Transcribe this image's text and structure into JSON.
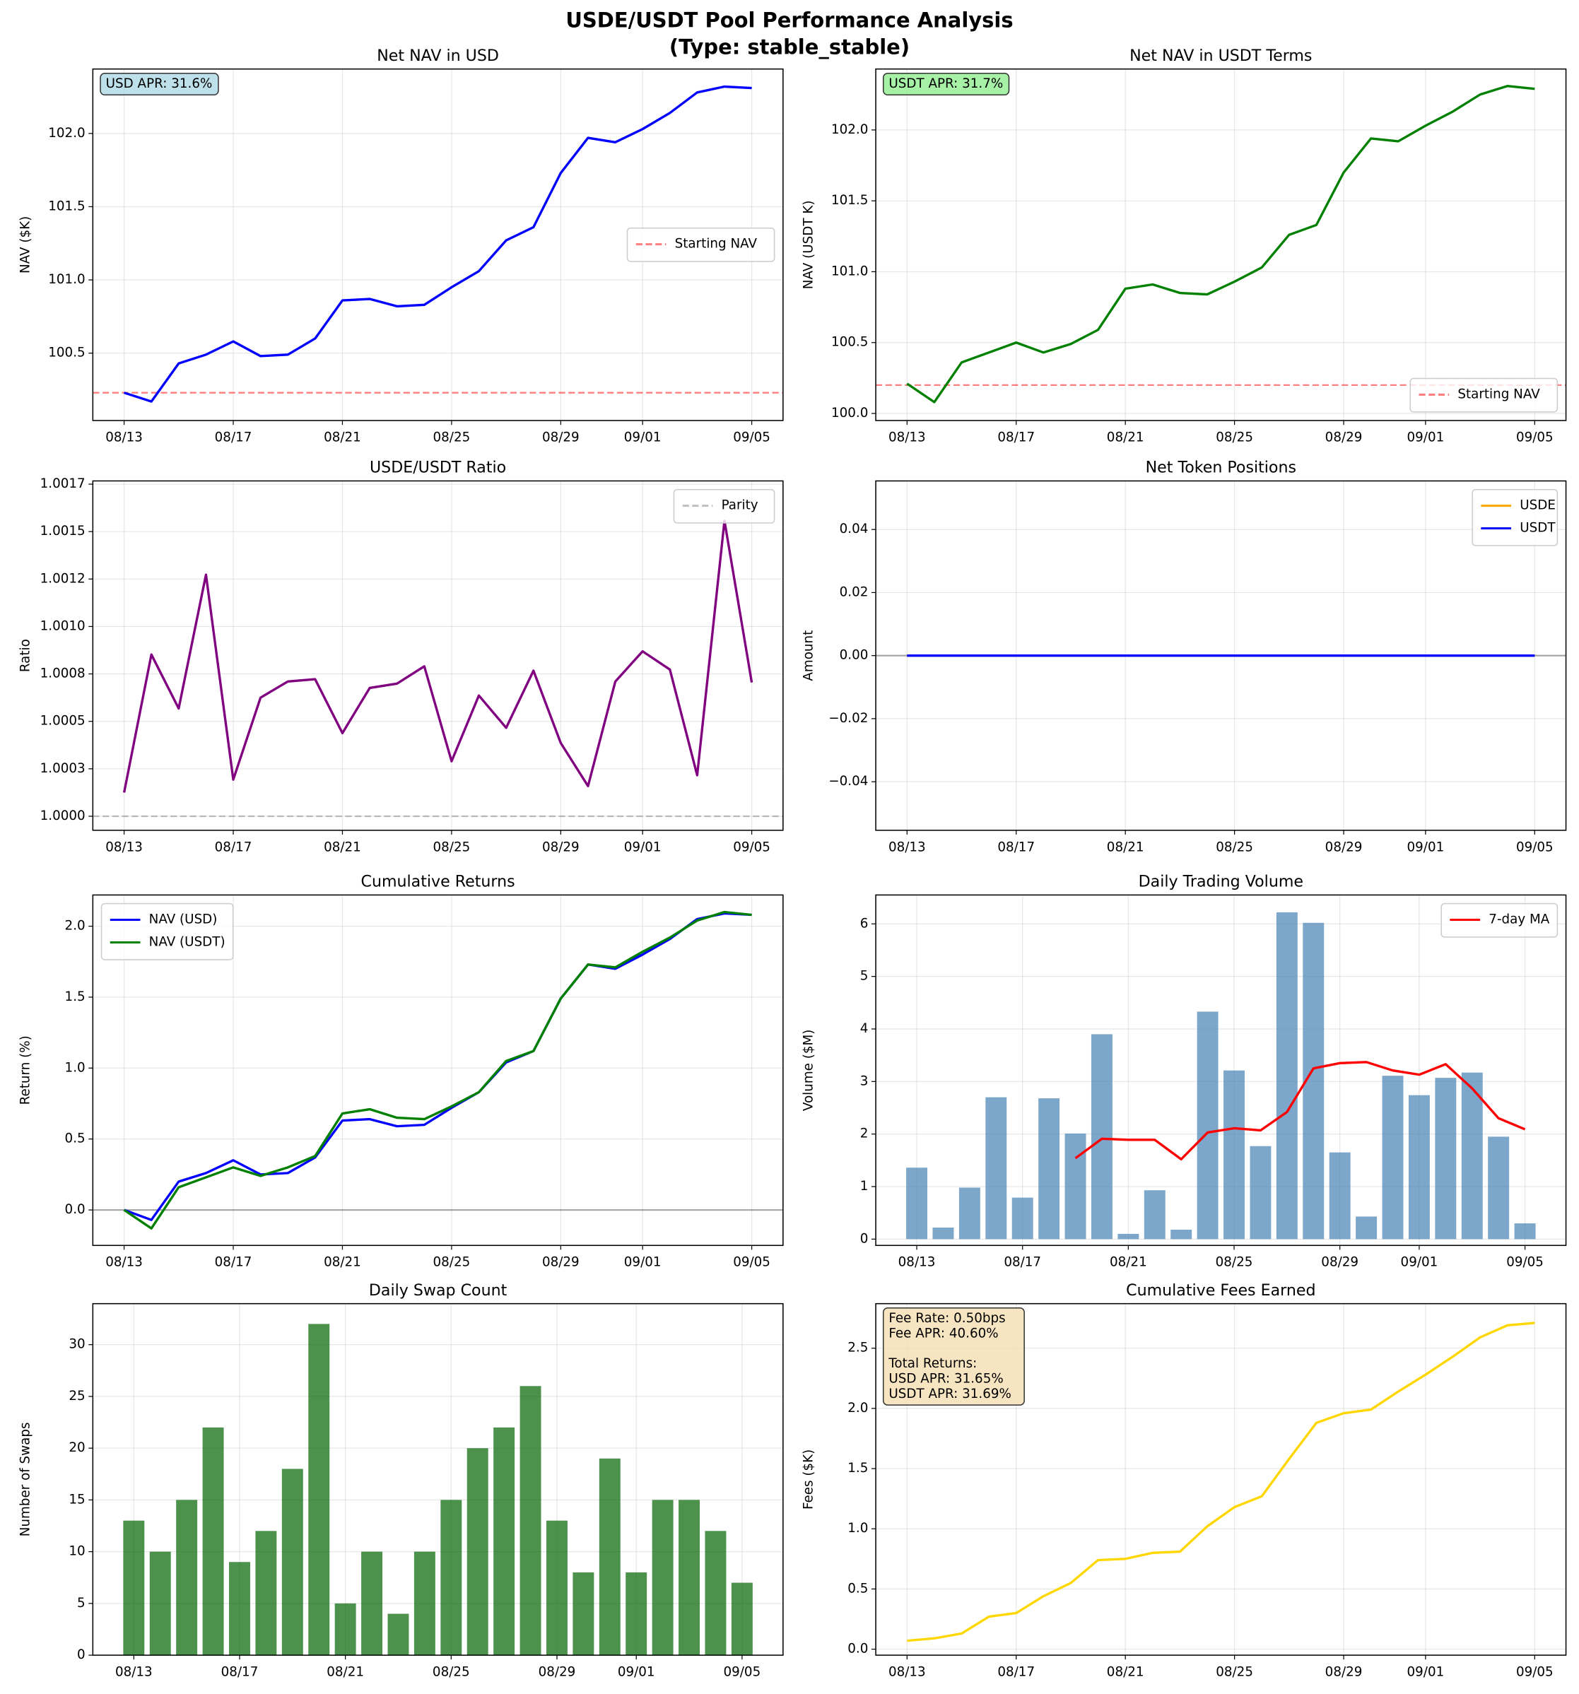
{
  "title": [
    "USDE/USDT Pool Performance Analysis",
    "(Type: stable_stable)"
  ],
  "chart_data": [
    {
      "type": "line",
      "title": "Net NAV in USD",
      "ylabel": "NAV ($K)",
      "x": [
        "08/13",
        "08/14",
        "08/15",
        "08/16",
        "08/17",
        "08/18",
        "08/19",
        "08/20",
        "08/21",
        "08/22",
        "08/23",
        "08/24",
        "08/25",
        "08/26",
        "08/27",
        "08/28",
        "08/29",
        "08/30",
        "08/31",
        "09/01",
        "09/02",
        "09/03",
        "09/04",
        "09/05"
      ],
      "xticks": [
        "08/13",
        "08/17",
        "08/21",
        "08/25",
        "08/29",
        "09/01",
        "09/05"
      ],
      "series": [
        {
          "color": "#0000ff",
          "values": [
            100.23,
            100.17,
            100.43,
            100.49,
            100.58,
            100.48,
            100.49,
            100.6,
            100.86,
            100.87,
            100.82,
            100.83,
            100.95,
            101.06,
            101.27,
            101.36,
            101.73,
            101.97,
            101.94,
            102.03,
            102.14,
            102.28,
            102.32,
            102.31
          ]
        }
      ],
      "hlines": [
        {
          "name": "Starting NAV",
          "value": 100.23,
          "color": "#ff0000",
          "alpha": 0.5,
          "style": "dashed"
        }
      ],
      "ylim": [
        100.04,
        102.44
      ],
      "yticks": [
        100.5,
        {
          "value": 101,
          "label": "101.0"
        },
        101.5,
        {
          "value": 102,
          "label": "102.0"
        }
      ],
      "grid": true,
      "legend": "center right",
      "annotation": {
        "text": [
          [
            "USD APR: 31.6%"
          ]
        ],
        "bg": "#add8e6"
      }
    },
    {
      "type": "line",
      "title": "Net NAV in USDT Terms",
      "ylabel": "NAV (USDT K)",
      "x": [
        "08/13",
        "08/14",
        "08/15",
        "08/16",
        "08/17",
        "08/18",
        "08/19",
        "08/20",
        "08/21",
        "08/22",
        "08/23",
        "08/24",
        "08/25",
        "08/26",
        "08/27",
        "08/28",
        "08/29",
        "08/30",
        "08/31",
        "09/01",
        "09/02",
        "09/03",
        "09/04",
        "09/05"
      ],
      "xticks": [
        "08/13",
        "08/17",
        "08/21",
        "08/25",
        "08/29",
        "09/01",
        "09/05"
      ],
      "series": [
        {
          "color": "#008000",
          "values": [
            100.21,
            100.08,
            100.36,
            100.43,
            100.5,
            100.43,
            100.49,
            100.59,
            100.88,
            100.91,
            100.85,
            100.84,
            100.93,
            101.03,
            101.26,
            101.33,
            101.7,
            101.94,
            101.92,
            102.03,
            102.13,
            102.25,
            102.31,
            102.29
          ]
        }
      ],
      "hlines": [
        {
          "name": "Starting NAV",
          "value": 100.2,
          "color": "#ff0000",
          "alpha": 0.5,
          "style": "dashed"
        }
      ],
      "ylim": [
        99.95,
        102.43
      ],
      "yticks": [
        {
          "value": 100,
          "label": "100.0"
        },
        100.5,
        {
          "value": 101,
          "label": "101.0"
        },
        101.5,
        {
          "value": 102,
          "label": "102.0"
        }
      ],
      "grid": true,
      "legend": "lower right",
      "annotation": {
        "text": [
          [
            "USDT APR: 31.7%"
          ]
        ],
        "bg": "#90ee90"
      }
    },
    {
      "type": "line",
      "title": "USDE/USDT Ratio",
      "ylabel": "Ratio",
      "x": [
        "08/13",
        "08/14",
        "08/15",
        "08/16",
        "08/17",
        "08/18",
        "08/19",
        "08/20",
        "08/21",
        "08/22",
        "08/23",
        "08/24",
        "08/25",
        "08/26",
        "08/27",
        "08/28",
        "08/29",
        "08/30",
        "08/31",
        "09/01",
        "09/02",
        "09/03",
        "09/04",
        "09/05"
      ],
      "xticks": [
        "08/13",
        "08/17",
        "08/21",
        "08/25",
        "08/29",
        "09/01",
        "09/05"
      ],
      "series": [
        {
          "color": "#800080",
          "values": [
            1.000125,
            1.000852,
            1.000568,
            1.001273,
            1.000193,
            1.000625,
            1.00071,
            1.000722,
            1.000438,
            1.000676,
            1.000699,
            1.00079,
            1.00029,
            1.000636,
            1.000466,
            1.000767,
            1.000386,
            1.000159,
            1.00071,
            1.000869,
            1.000773,
            1.000216,
            1.001557,
            1.000705
          ]
        }
      ],
      "hlines": [
        {
          "name": "Parity",
          "value": 1.0,
          "color": "#808080",
          "alpha": 0.5,
          "style": "dashed"
        }
      ],
      "ylim": [
        0.999926,
        1.001767
      ],
      "yticks": [
        {
          "value": 1.0,
          "label": "1.0000"
        },
        {
          "value": 1.00025,
          "label": "1.0003"
        },
        {
          "value": 1.0005,
          "label": "1.0005"
        },
        {
          "value": 1.00075,
          "label": "1.0008"
        },
        {
          "value": 1.001,
          "label": "1.0010"
        },
        {
          "value": 1.00125,
          "label": "1.0012"
        },
        {
          "value": 1.0015,
          "label": "1.0015"
        },
        {
          "value": 1.00175,
          "label": "1.0017"
        }
      ],
      "grid": true,
      "legend": "upper right"
    },
    {
      "type": "line",
      "title": "Net Token Positions",
      "ylabel": "Amount",
      "x": [
        "08/13",
        "08/14",
        "08/15",
        "08/16",
        "08/17",
        "08/18",
        "08/19",
        "08/20",
        "08/21",
        "08/22",
        "08/23",
        "08/24",
        "08/25",
        "08/26",
        "08/27",
        "08/28",
        "08/29",
        "08/30",
        "08/31",
        "09/01",
        "09/02",
        "09/03",
        "09/04",
        "09/05"
      ],
      "xticks": [
        "08/13",
        "08/17",
        "08/21",
        "08/25",
        "08/29",
        "09/01",
        "09/05"
      ],
      "series": [
        {
          "name": "USDE",
          "color": "#ffa500",
          "values": [
            0,
            0,
            0,
            0,
            0,
            0,
            0,
            0,
            0,
            0,
            0,
            0,
            0,
            0,
            0,
            0,
            0,
            0,
            0,
            0,
            0,
            0,
            0,
            0
          ]
        },
        {
          "name": "USDT",
          "color": "#0000ff",
          "values": [
            0,
            0,
            0,
            0,
            0,
            0,
            0,
            0,
            0,
            0,
            0,
            0,
            0,
            0,
            0,
            0,
            0,
            0,
            0,
            0,
            0,
            0,
            0,
            0
          ]
        }
      ],
      "hlines": [
        {
          "value": 0,
          "color": "#000000",
          "alpha": 0.3,
          "style": "solid"
        }
      ],
      "ylim": [
        -0.0554,
        0.0554
      ],
      "yticks": [
        {
          "value": -0.04,
          "label": "−0.04"
        },
        {
          "value": -0.02,
          "label": "−0.02"
        },
        {
          "value": 0,
          "label": "0.00"
        },
        0.02,
        0.04
      ],
      "grid": true,
      "legend": "upper right"
    },
    {
      "type": "line",
      "title": "Cumulative Returns",
      "ylabel": "Return (%)",
      "x": [
        "08/13",
        "08/14",
        "08/15",
        "08/16",
        "08/17",
        "08/18",
        "08/19",
        "08/20",
        "08/21",
        "08/22",
        "08/23",
        "08/24",
        "08/25",
        "08/26",
        "08/27",
        "08/28",
        "08/29",
        "08/30",
        "08/31",
        "09/01",
        "09/02",
        "09/03",
        "09/04",
        "09/05"
      ],
      "xticks": [
        "08/13",
        "08/17",
        "08/21",
        "08/25",
        "08/29",
        "09/01",
        "09/05"
      ],
      "series": [
        {
          "name": "NAV (USD)",
          "color": "#0000ff",
          "values": [
            0,
            -0.07,
            0.2,
            0.26,
            0.35,
            0.25,
            0.26,
            0.37,
            0.63,
            0.64,
            0.59,
            0.6,
            0.72,
            0.83,
            1.04,
            1.12,
            1.49,
            1.73,
            1.7,
            1.8,
            1.91,
            2.05,
            2.09,
            2.08
          ]
        },
        {
          "name": "NAV (USDT)",
          "color": "#008000",
          "values": [
            0,
            -0.13,
            0.16,
            0.23,
            0.3,
            0.24,
            0.3,
            0.38,
            0.68,
            0.71,
            0.65,
            0.64,
            0.73,
            0.83,
            1.05,
            1.12,
            1.49,
            1.73,
            1.71,
            1.82,
            1.92,
            2.04,
            2.1,
            2.08
          ]
        }
      ],
      "hlines": [
        {
          "value": 0,
          "color": "#000000",
          "alpha": 0.3,
          "style": "solid"
        }
      ],
      "ylim": [
        -0.25,
        2.22
      ],
      "yticks": [
        {
          "value": 0,
          "label": "0.0"
        },
        0.5,
        {
          "value": 1,
          "label": "1.0"
        },
        1.5,
        {
          "value": 2,
          "label": "2.0"
        }
      ],
      "grid": true,
      "legend": "upper left"
    },
    {
      "type": "bar",
      "title": "Daily Trading Volume",
      "ylabel": "Volume ($M)",
      "x": [
        "08/13",
        "08/14",
        "08/15",
        "08/16",
        "08/17",
        "08/18",
        "08/19",
        "08/20",
        "08/21",
        "08/22",
        "08/23",
        "08/24",
        "08/25",
        "08/26",
        "08/27",
        "08/28",
        "08/29",
        "08/30",
        "08/31",
        "09/01",
        "09/02",
        "09/03",
        "09/04",
        "09/05"
      ],
      "xticks": [
        "08/13",
        "08/17",
        "08/21",
        "08/25",
        "08/29",
        "09/01",
        "09/05"
      ],
      "values": [
        1.36,
        0.22,
        0.98,
        2.7,
        0.79,
        2.68,
        2.01,
        3.9,
        0.1,
        0.93,
        0.18,
        4.33,
        3.21,
        1.77,
        6.22,
        6.02,
        1.65,
        0.43,
        3.11,
        2.74,
        3.07,
        3.17,
        1.95,
        0.3
      ],
      "color": "#4682b4",
      "alpha": 0.7,
      "series": [
        {
          "name": "7-day MA",
          "color": "#ff0000",
          "values": [
            null,
            null,
            null,
            null,
            null,
            null,
            1.54,
            1.91,
            1.89,
            1.89,
            1.52,
            2.03,
            2.11,
            2.07,
            2.42,
            3.25,
            3.35,
            3.37,
            3.21,
            3.13,
            3.33,
            2.87,
            2.3,
            2.09
          ]
        }
      ],
      "ylim": [
        -0.12,
        6.55
      ],
      "yticks": [
        0,
        1,
        2,
        3,
        4,
        5,
        6
      ],
      "grid": true,
      "legend": "upper right"
    },
    {
      "type": "bar",
      "title": "Daily Swap Count",
      "ylabel": "Number of Swaps",
      "x": [
        "08/13",
        "08/14",
        "08/15",
        "08/16",
        "08/17",
        "08/18",
        "08/19",
        "08/20",
        "08/21",
        "08/22",
        "08/23",
        "08/24",
        "08/25",
        "08/26",
        "08/27",
        "08/28",
        "08/29",
        "08/30",
        "08/31",
        "09/01",
        "09/02",
        "09/03",
        "09/04",
        "09/05"
      ],
      "xticks": [
        "08/13",
        "08/17",
        "08/21",
        "08/25",
        "08/29",
        "09/01",
        "09/05"
      ],
      "values": [
        13,
        10,
        15,
        22,
        9,
        12,
        18,
        32,
        5,
        10,
        4,
        10,
        15,
        20,
        22,
        26,
        13,
        8,
        19,
        8,
        15,
        15,
        12,
        7
      ],
      "color": "#006400",
      "alpha": 0.7,
      "ylim": [
        0,
        33.96
      ],
      "yticks": [
        0,
        5,
        10,
        15,
        20,
        25,
        30
      ],
      "grid": true
    },
    {
      "type": "line",
      "title": "Cumulative Fees Earned",
      "ylabel": "Fees ($K)",
      "x": [
        "08/13",
        "08/14",
        "08/15",
        "08/16",
        "08/17",
        "08/18",
        "08/19",
        "08/20",
        "08/21",
        "08/22",
        "08/23",
        "08/24",
        "08/25",
        "08/26",
        "08/27",
        "08/28",
        "08/29",
        "08/30",
        "08/31",
        "09/01",
        "09/02",
        "09/03",
        "09/04",
        "09/05"
      ],
      "xticks": [
        "08/13",
        "08/17",
        "08/21",
        "08/25",
        "08/29",
        "09/01",
        "09/05"
      ],
      "series": [
        {
          "color": "#ffd700",
          "values": [
            0.07,
            0.09,
            0.13,
            0.27,
            0.3,
            0.44,
            0.55,
            0.74,
            0.75,
            0.8,
            0.81,
            1.02,
            1.18,
            1.27,
            1.58,
            1.88,
            1.96,
            1.99,
            2.14,
            2.28,
            2.43,
            2.59,
            2.69,
            2.71
          ]
        }
      ],
      "ylim": [
        -0.05,
        2.87
      ],
      "yticks": [
        {
          "value": 0,
          "label": "0.0"
        },
        0.5,
        {
          "value": 1,
          "label": "1.0"
        },
        1.5,
        {
          "value": 2,
          "label": "2.0"
        },
        2.5
      ],
      "grid": true,
      "annotation": {
        "text": [
          [
            "Fee Rate: 0.50bps",
            "Fee APR: 40.60%"
          ],
          [
            "Total Returns:",
            "USD APR: 31.65%",
            "USDT APR: 31.69%"
          ]
        ],
        "bg": "#f5deb3"
      }
    }
  ]
}
